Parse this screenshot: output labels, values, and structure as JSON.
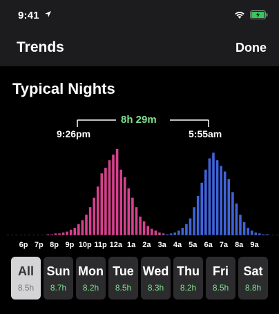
{
  "status_bar": {
    "time": "9:41"
  },
  "nav": {
    "title": "Trends",
    "done": "Done"
  },
  "section": {
    "title": "Typical Nights"
  },
  "summary": {
    "duration": "8h 29m",
    "bedtime": "9:26pm",
    "wake": "5:55am"
  },
  "colors": {
    "bedtime_bars": "#d6408e",
    "wake_bars": "#3f63d9",
    "duration_text": "#7ee08e",
    "background": "#000000"
  },
  "chart_data": {
    "type": "bar",
    "x_ticks": [
      "6p",
      "7p",
      "8p",
      "9p",
      "10p",
      "11p",
      "12a",
      "1a",
      "2a",
      "3a",
      "4a",
      "5a",
      "6a",
      "7a",
      "8a",
      "9a"
    ],
    "x_range": [
      "6p",
      "9:45a"
    ],
    "grid": false,
    "series": [
      {
        "values": [
          0,
          0,
          0,
          0,
          0,
          0,
          1,
          1,
          2,
          2,
          3,
          4,
          6,
          8,
          12,
          16,
          22,
          30,
          40,
          52,
          66,
          72,
          80,
          86,
          92,
          70,
          62,
          50,
          40,
          30,
          20,
          15,
          10,
          7,
          5,
          3,
          2,
          1,
          1
        ]
      },
      {
        "values": [
          0,
          0,
          1,
          1,
          2,
          3,
          5,
          8,
          12,
          18,
          30,
          42,
          56,
          70,
          82,
          88,
          80,
          74,
          68,
          60,
          46,
          34,
          22,
          14,
          8,
          5,
          3,
          2,
          1,
          1
        ]
      }
    ],
    "bedtime_start_index": 0,
    "bedtime_step": "15 min from 6:00p",
    "wake_start_index": 0,
    "wake_step": "15 min from 2:30a"
  },
  "days": [
    {
      "name": "All",
      "value": "8.5h",
      "selected": true
    },
    {
      "name": "Sun",
      "value": "8.7h"
    },
    {
      "name": "Mon",
      "value": "8.2h"
    },
    {
      "name": "Tue",
      "value": "8.5h"
    },
    {
      "name": "Wed",
      "value": "8.3h"
    },
    {
      "name": "Thu",
      "value": "8.2h"
    },
    {
      "name": "Fri",
      "value": "8.5h"
    },
    {
      "name": "Sat",
      "value": "8.8h"
    }
  ]
}
